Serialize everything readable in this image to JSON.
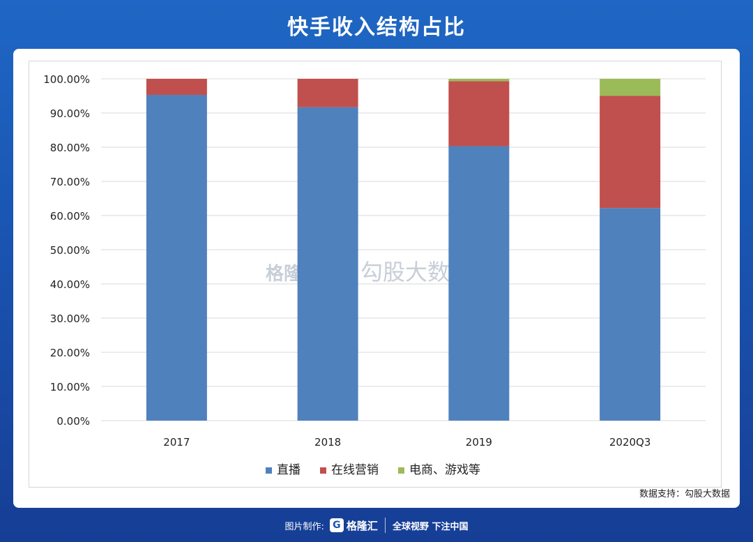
{
  "page": {
    "title": "快手收入结构占比",
    "source_note": "数据支持：勾股大数据",
    "footer_label": "图片制作:",
    "footer_logo_text": "格隆汇",
    "footer_slogan": "全球视野 下注中国"
  },
  "watermark": {
    "brand": "格隆汇",
    "text": "勾股大数据"
  },
  "colors": {
    "live": "#4f81bd",
    "ads": "#c0504d",
    "ecommerce": "#9bbb59",
    "grid": "#d9d9d9"
  },
  "chart_data": {
    "type": "bar",
    "stacked": true,
    "categories": [
      "2017",
      "2018",
      "2019",
      "2020Q3"
    ],
    "series": [
      {
        "name": "直播",
        "values": [
          95.3,
          91.7,
          80.3,
          62.2
        ],
        "color": "#4f81bd"
      },
      {
        "name": "在线营销",
        "values": [
          4.7,
          8.3,
          19.0,
          32.8
        ],
        "color": "#c0504d"
      },
      {
        "name": "电商、游戏等",
        "values": [
          0.0,
          0.0,
          0.7,
          5.0
        ],
        "color": "#9bbb59"
      }
    ],
    "ylim": [
      0,
      100
    ],
    "yticks": [
      0,
      10,
      20,
      30,
      40,
      50,
      60,
      70,
      80,
      90,
      100
    ],
    "ytick_labels": [
      "0.00%",
      "10.00%",
      "20.00%",
      "30.00%",
      "40.00%",
      "50.00%",
      "60.00%",
      "70.00%",
      "80.00%",
      "90.00%",
      "100.00%"
    ],
    "grid": true,
    "legend_position": "bottom",
    "title": "",
    "xlabel": "",
    "ylabel": ""
  }
}
